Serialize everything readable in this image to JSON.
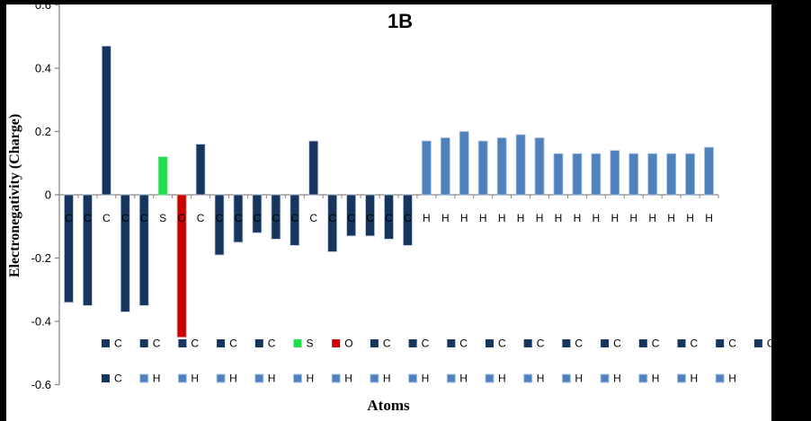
{
  "window": {
    "border_color": "#000000",
    "canvas_color": "#FFFFFF"
  },
  "chart_data": {
    "type": "bar",
    "title": "1B",
    "xlabel": "Atoms",
    "ylabel": "Electronegativity (Charge)",
    "ylim": [
      -0.6,
      0.6
    ],
    "yticks": [
      "0.6",
      "0.4",
      "0.2",
      "0",
      "-0.2",
      "-0.4",
      "-0.6"
    ],
    "grid": false,
    "legend_position": "bottom",
    "legend_rows": 2,
    "legend_row1_count": 18,
    "categories": [
      "C",
      "C",
      "C",
      "C",
      "C",
      "S",
      "O",
      "C",
      "C",
      "C",
      "C",
      "C",
      "C",
      "C",
      "C",
      "C",
      "C",
      "C",
      "C",
      "H",
      "H",
      "H",
      "H",
      "H",
      "H",
      "H",
      "H",
      "H",
      "H",
      "H",
      "H",
      "H",
      "H",
      "H",
      "H"
    ],
    "values": [
      -0.34,
      -0.35,
      0.47,
      -0.37,
      -0.35,
      0.12,
      -0.45,
      0.16,
      -0.19,
      -0.15,
      -0.12,
      -0.14,
      -0.16,
      0.17,
      -0.18,
      -0.13,
      -0.13,
      -0.14,
      -0.16,
      0.17,
      0.18,
      0.2,
      0.17,
      0.18,
      0.19,
      0.18,
      0.13,
      0.13,
      0.13,
      0.14,
      0.13,
      0.13,
      0.13,
      0.13,
      0.15
    ],
    "series_colors": {
      "C": "#17365D",
      "S": "#1FDF4F",
      "O": "#CC0000",
      "H": "#4F81BD"
    },
    "axis_color": "#898989"
  }
}
